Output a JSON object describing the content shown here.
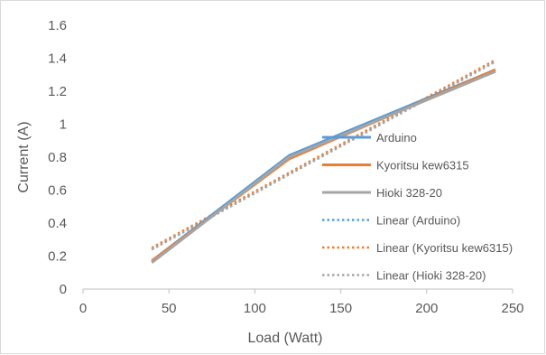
{
  "chart_data": {
    "type": "line",
    "xlabel": "Load (Watt)",
    "ylabel": "Current (A)",
    "xlim": [
      0,
      250
    ],
    "ylim": [
      0,
      1.6
    ],
    "x_ticks": [
      "0",
      "50",
      "100",
      "150",
      "200",
      "250"
    ],
    "y_ticks": [
      "0",
      "0.2",
      "0.4",
      "0.6",
      "0.8",
      "1",
      "1.2",
      "1.4",
      "1.6"
    ],
    "grid": false,
    "legend_position": "right",
    "series": [
      {
        "name": "Arduino",
        "style": "solid",
        "color": "#5b9bd5",
        "x": [
          40,
          120,
          240
        ],
        "y": [
          0.17,
          0.81,
          1.33
        ]
      },
      {
        "name": "Kyoritsu kew6315",
        "style": "solid",
        "color": "#ed7d31",
        "x": [
          40,
          120,
          240
        ],
        "y": [
          0.17,
          0.79,
          1.33
        ]
      },
      {
        "name": "Hioki 328-20",
        "style": "solid",
        "color": "#a5a5a5",
        "x": [
          40,
          120,
          240
        ],
        "y": [
          0.16,
          0.8,
          1.32
        ]
      },
      {
        "name": "Linear (Arduino)",
        "style": "dotted",
        "color": "#5b9bd5",
        "x": [
          40,
          240
        ],
        "y": [
          0.24,
          1.38
        ]
      },
      {
        "name": "Linear (Kyoritsu kew6315)",
        "style": "dotted",
        "color": "#ed7d31",
        "x": [
          40,
          240
        ],
        "y": [
          0.25,
          1.39
        ]
      },
      {
        "name": "Linear (Hioki 328-20)",
        "style": "dotted",
        "color": "#a5a5a5",
        "x": [
          40,
          240
        ],
        "y": [
          0.24,
          1.38
        ]
      }
    ]
  }
}
